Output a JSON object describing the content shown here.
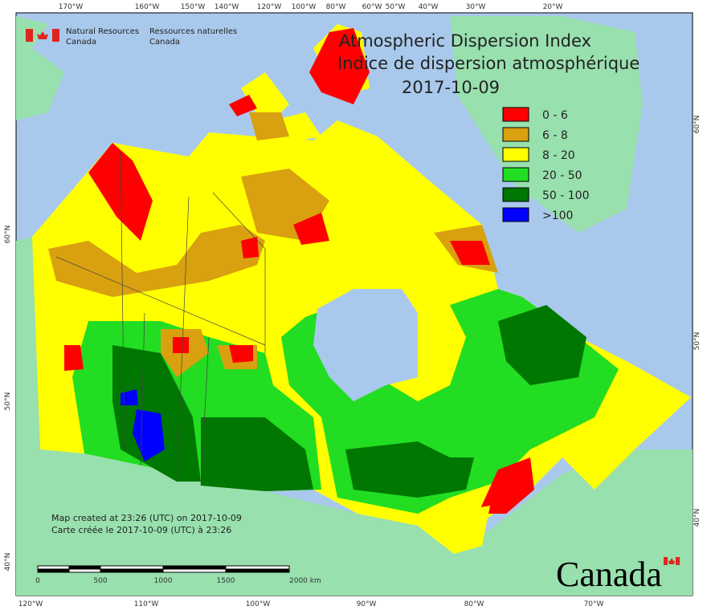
{
  "agency": {
    "en": [
      "Natural Resources",
      "Canada"
    ],
    "fr": [
      "Ressources naturelles",
      "Canada"
    ]
  },
  "title": [
    "Atmospheric Dispersion Index",
    "Indice de dispersion atmosphérique",
    "2017-10-09"
  ],
  "legend": [
    {
      "label": "0 - 6",
      "color": "#ff0000"
    },
    {
      "label": "6 - 8",
      "color": "#d9a010"
    },
    {
      "label": "8 - 20",
      "color": "#ffff00"
    },
    {
      "label": "20 - 50",
      "color": "#22dd22"
    },
    {
      "label": "50 - 100",
      "color": "#007700"
    },
    {
      "label": ">100",
      "color": "#0000ff"
    }
  ],
  "top_labels": [
    "170°W",
    "160°W",
    "150°W",
    "140°W",
    "120°W",
    "100°W",
    "80°W",
    "60°W",
    "50°W",
    "40°W",
    "30°W",
    "20°W"
  ],
  "bottom_labels": [
    "120°W",
    "110°W",
    "100°W",
    "90°W",
    "80°W",
    "70°W"
  ],
  "left_labels": [
    "60°N",
    "50°N",
    "40°N"
  ],
  "right_labels": [
    "60°N",
    "50°N",
    "40°N"
  ],
  "scale_labels": [
    "0",
    "500",
    "1000",
    "1500",
    "2000 km"
  ],
  "credits": [
    "Map created at 23:26 (UTC) on 2017-10-09",
    "Carte créée le 2017-10-09 (UTC) à 23:26"
  ],
  "wordmark": "Canada"
}
